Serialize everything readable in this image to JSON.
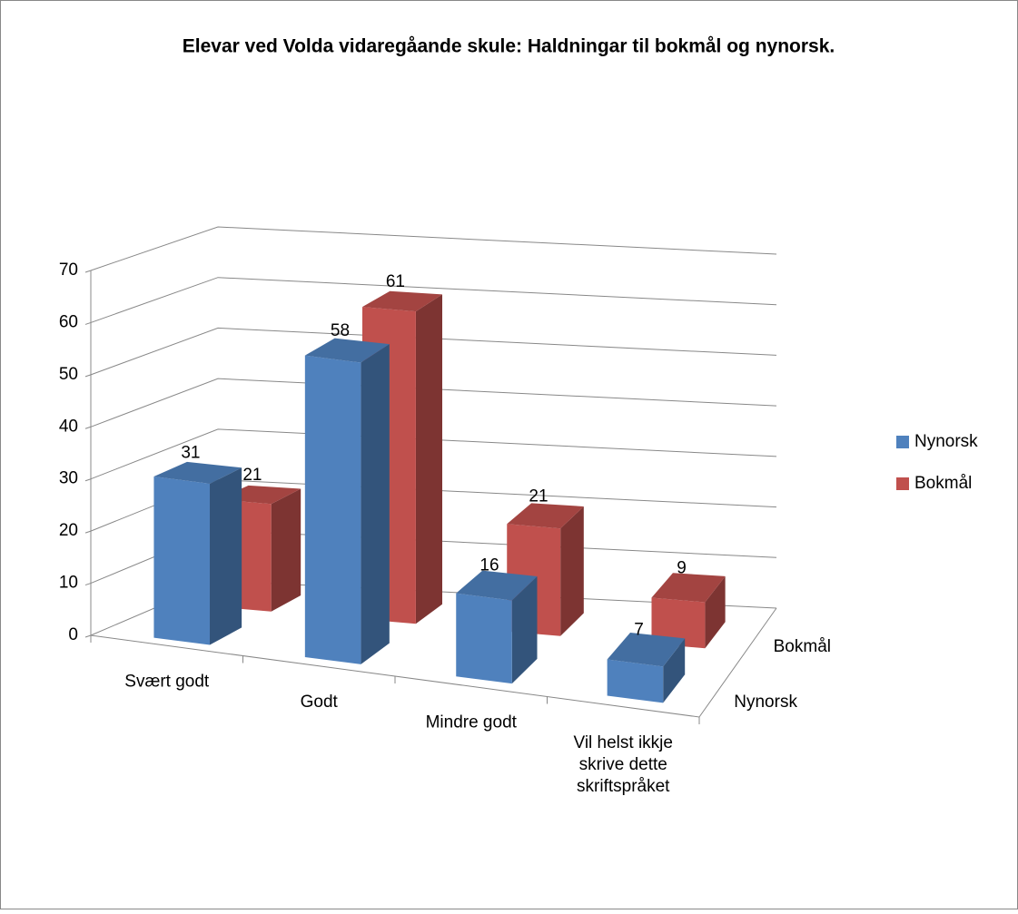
{
  "chart_data": {
    "type": "bar3d",
    "title": "Elevar ved Volda vidaregåande skule: Haldningar til bokmål og nynorsk.",
    "categories": [
      "Svært godt",
      "Godt",
      "Mindre godt",
      "Vil helst ikkje skrive dette skriftspråket"
    ],
    "series": [
      {
        "name": "Nynorsk",
        "color": "#4f81bd",
        "values": [
          31,
          58,
          16,
          7
        ]
      },
      {
        "name": "Bokmål",
        "color": "#c0504d",
        "values": [
          21,
          61,
          21,
          9
        ]
      }
    ],
    "ylim": [
      0,
      70
    ],
    "yticks": [
      0,
      10,
      20,
      30,
      40,
      50,
      60,
      70
    ],
    "grid": true,
    "legend": "right"
  }
}
